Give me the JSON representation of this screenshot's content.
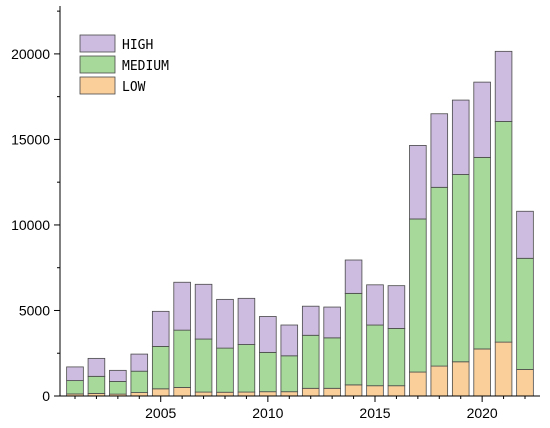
{
  "chart_data": {
    "type": "bar",
    "stacked": true,
    "title": "",
    "xlabel": "",
    "ylabel": "",
    "x": [
      2001,
      2002,
      2003,
      2004,
      2005,
      2006,
      2007,
      2008,
      2009,
      2010,
      2011,
      2012,
      2013,
      2014,
      2015,
      2016,
      2017,
      2018,
      2019,
      2020,
      2021,
      2022
    ],
    "xticks": [
      "2005",
      "2010",
      "2015",
      "2020"
    ],
    "yticks": [
      "0",
      "5000",
      "10000",
      "15000",
      "20000"
    ],
    "ylim": [
      0,
      22800
    ],
    "xlim": [
      2000.3,
      2022.7
    ],
    "grid": false,
    "legend_position": "top-left",
    "series": [
      {
        "name": "LOW",
        "color": "#fbcf9a",
        "values": [
          120,
          150,
          110,
          200,
          420,
          500,
          230,
          220,
          230,
          250,
          250,
          450,
          450,
          650,
          600,
          600,
          1400,
          1750,
          2000,
          2750,
          3150,
          1550
        ]
      },
      {
        "name": "MEDIUM",
        "color": "#a6d99a",
        "values": [
          780,
          1000,
          740,
          1250,
          2480,
          3350,
          3100,
          2580,
          2780,
          2300,
          2100,
          3100,
          2950,
          5350,
          3550,
          3350,
          8950,
          10450,
          10950,
          11200,
          12900,
          6500
        ]
      },
      {
        "name": "HIGH",
        "color": "#cdbcdf",
        "values": [
          800,
          1050,
          650,
          1000,
          2050,
          2800,
          3200,
          2850,
          2700,
          2100,
          1800,
          1700,
          1800,
          1950,
          2350,
          2500,
          4300,
          4300,
          4350,
          4400,
          4100,
          2750
        ]
      }
    ]
  }
}
